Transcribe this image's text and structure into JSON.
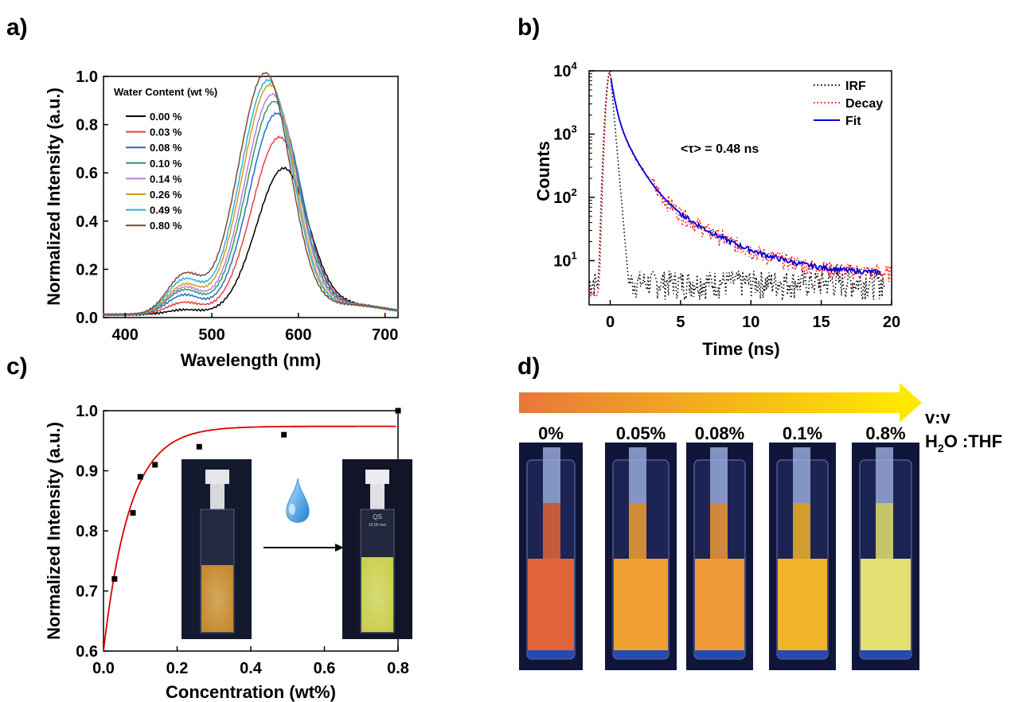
{
  "panel_labels": {
    "a": "a)",
    "b": "b)",
    "c": "c)",
    "d": "d)"
  },
  "colors": {
    "s000": "#000000",
    "s003": "#e8403a",
    "s008": "#1f6fc5",
    "s010": "#2e9b5f",
    "s014": "#b77fe0",
    "s026": "#d99a1c",
    "s049": "#28b5d8",
    "s080": "#7a4a3c",
    "irf": "#000000",
    "decay": "#ff0000",
    "fit": "#0000dd",
    "fitline": "#dd0000"
  },
  "chart_data": [
    {
      "panel": "a",
      "type": "line",
      "xlabel": "Wavelength (nm)",
      "ylabel": "Normalized Intensity (a.u.)",
      "xlim": [
        375,
        715
      ],
      "ylim": [
        0,
        1.0
      ],
      "xticks": [
        "400",
        "500",
        "600",
        "700"
      ],
      "yticks": [
        "0.0",
        "0.2",
        "0.4",
        "0.6",
        "0.8",
        "1.0"
      ],
      "legend_title": "Water Content (wt %)",
      "legend_position": "top-left",
      "series": [
        {
          "name": "0.00 %",
          "peak_x": 583,
          "peak_y": 0.6,
          "shoulder": 0.02
        },
        {
          "name": "0.03 %",
          "peak_x": 578,
          "peak_y": 0.73,
          "shoulder": 0.05
        },
        {
          "name": "0.08 %",
          "peak_x": 575,
          "peak_y": 0.83,
          "shoulder": 0.08
        },
        {
          "name": "0.10 %",
          "peak_x": 572,
          "peak_y": 0.88,
          "shoulder": 0.1
        },
        {
          "name": "0.14 %",
          "peak_x": 570,
          "peak_y": 0.91,
          "shoulder": 0.11
        },
        {
          "name": "0.26 %",
          "peak_x": 567,
          "peak_y": 0.95,
          "shoulder": 0.12
        },
        {
          "name": "0.49 %",
          "peak_x": 565,
          "peak_y": 0.97,
          "shoulder": 0.14
        },
        {
          "name": "0.80 %",
          "peak_x": 562,
          "peak_y": 1.0,
          "shoulder": 0.16
        }
      ]
    },
    {
      "panel": "b",
      "type": "line",
      "xlabel": "Time (ns)",
      "ylabel": "Counts",
      "xlim": [
        -1.5,
        20
      ],
      "ylim": [
        2,
        10000
      ],
      "yscale": "log",
      "xticks": [
        "0",
        "5",
        "10",
        "15",
        "20"
      ],
      "yticks": [
        "10^1",
        "10^2",
        "10^3",
        "10^4"
      ],
      "annotation": "<τ> = 0.48 ns",
      "legend_position": "top-right",
      "series": [
        {
          "name": "IRF",
          "style": "dotted"
        },
        {
          "name": "Decay",
          "style": "dotted"
        },
        {
          "name": "Fit",
          "style": "solid"
        }
      ]
    },
    {
      "panel": "c",
      "type": "scatter",
      "xlabel": "Concentration (wt%)",
      "ylabel": "Normalized Intensity (a.u.)",
      "xlim": [
        0,
        0.8
      ],
      "ylim": [
        0.6,
        1.0
      ],
      "xticks": [
        "0.0",
        "0.2",
        "0.4",
        "0.6",
        "0.8"
      ],
      "yticks": [
        "0.6",
        "0.7",
        "0.8",
        "0.9",
        "1.0"
      ],
      "points": [
        {
          "x": 0.03,
          "y": 0.72
        },
        {
          "x": 0.08,
          "y": 0.83
        },
        {
          "x": 0.1,
          "y": 0.89
        },
        {
          "x": 0.14,
          "y": 0.91
        },
        {
          "x": 0.26,
          "y": 0.94
        },
        {
          "x": 0.49,
          "y": 0.96
        },
        {
          "x": 0.8,
          "y": 1.0
        }
      ],
      "fit": {
        "y0": 0.6,
        "a": 0.374,
        "k": 14
      }
    }
  ],
  "panel_d": {
    "ratio_label": "v:v",
    "solvent_h": "H",
    "solvent_sub": "2",
    "solvent_rest": "O :THF",
    "vials": [
      {
        "label": "0%",
        "color": "#e0663a"
      },
      {
        "label": "0.05%",
        "color": "#f0a030"
      },
      {
        "label": "0.08%",
        "color": "#f09a38"
      },
      {
        "label": "0.1%",
        "color": "#f0b428"
      },
      {
        "label": "0.8%",
        "color": "#e2e070"
      }
    ]
  }
}
